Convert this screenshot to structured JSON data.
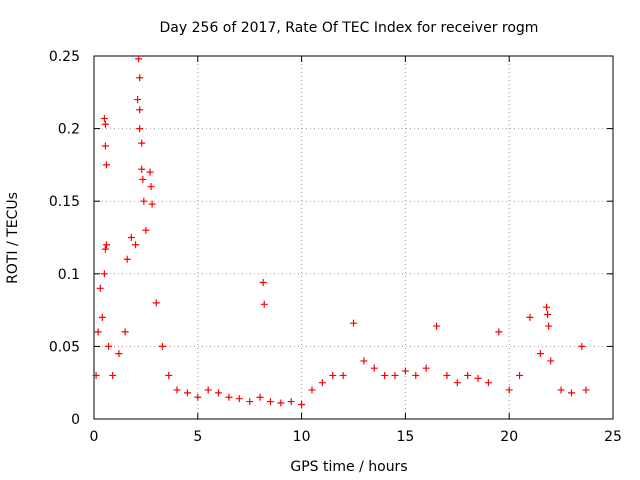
{
  "chart_data": {
    "type": "scatter",
    "title": "Day 256 of 2017, Rate Of TEC Index for receiver rogm",
    "xlabel": "GPS time / hours",
    "ylabel": "ROTI / TECUs",
    "xlim": [
      0,
      25
    ],
    "ylim": [
      0,
      0.25
    ],
    "x_ticks": [
      0,
      5,
      10,
      15,
      20,
      25
    ],
    "y_ticks": [
      0,
      0.05,
      0.1,
      0.15,
      0.2,
      0.25
    ],
    "x_tick_labels": [
      "0",
      "5",
      "10",
      "15",
      "20",
      "25"
    ],
    "y_tick_labels": [
      "0",
      "0.05",
      "0.1",
      "0.15",
      "0.2",
      "0.25"
    ],
    "grid": true,
    "marker": "+",
    "color": "#ff0000",
    "series": [
      {
        "name": "ROTI",
        "points": [
          [
            0.1,
            0.03
          ],
          [
            0.2,
            0.06
          ],
          [
            0.3,
            0.09
          ],
          [
            0.4,
            0.07
          ],
          [
            0.5,
            0.1
          ],
          [
            0.55,
            0.117
          ],
          [
            0.6,
            0.12
          ],
          [
            0.5,
            0.207
          ],
          [
            0.55,
            0.203
          ],
          [
            0.55,
            0.188
          ],
          [
            0.6,
            0.175
          ],
          [
            0.7,
            0.05
          ],
          [
            0.9,
            0.03
          ],
          [
            1.2,
            0.045
          ],
          [
            1.5,
            0.06
          ],
          [
            1.6,
            0.11
          ],
          [
            1.8,
            0.125
          ],
          [
            2.0,
            0.12
          ],
          [
            2.1,
            0.22
          ],
          [
            2.15,
            0.248
          ],
          [
            2.2,
            0.235
          ],
          [
            2.2,
            0.213
          ],
          [
            2.2,
            0.2
          ],
          [
            2.3,
            0.19
          ],
          [
            2.3,
            0.172
          ],
          [
            2.35,
            0.165
          ],
          [
            2.4,
            0.15
          ],
          [
            2.5,
            0.13
          ],
          [
            2.7,
            0.17
          ],
          [
            2.75,
            0.16
          ],
          [
            2.8,
            0.148
          ],
          [
            3.0,
            0.08
          ],
          [
            3.3,
            0.05
          ],
          [
            3.6,
            0.03
          ],
          [
            4.0,
            0.02
          ],
          [
            4.5,
            0.018
          ],
          [
            5.0,
            0.015
          ],
          [
            5.5,
            0.02
          ],
          [
            6.0,
            0.018
          ],
          [
            6.5,
            0.015
          ],
          [
            7.0,
            0.014
          ],
          [
            7.5,
            0.012
          ],
          [
            8.0,
            0.015
          ],
          [
            8.15,
            0.094
          ],
          [
            8.2,
            0.079
          ],
          [
            8.5,
            0.012
          ],
          [
            9.0,
            0.011
          ],
          [
            9.5,
            0.012
          ],
          [
            10.0,
            0.01
          ],
          [
            10.5,
            0.02
          ],
          [
            11.0,
            0.025
          ],
          [
            11.5,
            0.03
          ],
          [
            12.0,
            0.03
          ],
          [
            12.5,
            0.066
          ],
          [
            13.0,
            0.04
          ],
          [
            13.5,
            0.035
          ],
          [
            14.0,
            0.03
          ],
          [
            14.5,
            0.03
          ],
          [
            15.0,
            0.033
          ],
          [
            15.5,
            0.03
          ],
          [
            16.0,
            0.035
          ],
          [
            16.5,
            0.064
          ],
          [
            17.0,
            0.03
          ],
          [
            17.5,
            0.025
          ],
          [
            18.0,
            0.03
          ],
          [
            18.5,
            0.028
          ],
          [
            19.0,
            0.025
          ],
          [
            19.5,
            0.06
          ],
          [
            20.0,
            0.02
          ],
          [
            20.5,
            0.03
          ],
          [
            21.0,
            0.07
          ],
          [
            21.5,
            0.045
          ],
          [
            21.8,
            0.077
          ],
          [
            21.85,
            0.072
          ],
          [
            21.9,
            0.064
          ],
          [
            22.0,
            0.04
          ],
          [
            22.5,
            0.02
          ],
          [
            23.0,
            0.018
          ],
          [
            23.5,
            0.05
          ],
          [
            23.7,
            0.02
          ]
        ]
      }
    ]
  }
}
